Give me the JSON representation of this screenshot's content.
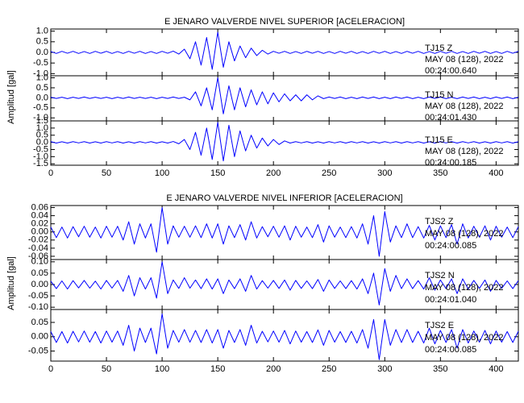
{
  "chart_data": [
    {
      "type": "line",
      "title": "E JENARO VALVERDE NIVEL SUPERIOR [ACELERACION]",
      "y_label": "Amplitud [gal]",
      "color": "#0000ff",
      "x": [
        0,
        5,
        10,
        15,
        20,
        25,
        30,
        35,
        40,
        45,
        50,
        55,
        60,
        65,
        70,
        75,
        80,
        85,
        90,
        95,
        100,
        105,
        110,
        115,
        120,
        125,
        130,
        135,
        140,
        145,
        150,
        155,
        160,
        165,
        170,
        175,
        180,
        185,
        190,
        195,
        200,
        205,
        210,
        215,
        220,
        225,
        230,
        235,
        240,
        245,
        250,
        255,
        260,
        265,
        270,
        275,
        280,
        285,
        290,
        295,
        300,
        305,
        310,
        315,
        320,
        325,
        330,
        335,
        340,
        345,
        350,
        355,
        360,
        365,
        370,
        375,
        380,
        385,
        390,
        395,
        400,
        405,
        410,
        415,
        420
      ],
      "xlim": [
        0,
        420
      ],
      "xticks": [
        0,
        50,
        100,
        150,
        200,
        250,
        300,
        350,
        400
      ],
      "panels": [
        {
          "annotation": [
            "TJ15   Z",
            "MAY 08 (128), 2022",
            "00:24:00.640"
          ],
          "ylim": [
            -1.1,
            1.1
          ],
          "yticks": [
            {
              "value": -1,
              "label": "-1.0"
            },
            -0.5,
            {
              "value": 0,
              "label": "0.0"
            },
            0.5,
            {
              "value": 1,
              "label": "1.0"
            }
          ],
          "values": [
            0.04,
            -0.05,
            0.05,
            -0.04,
            0.05,
            -0.05,
            0.04,
            -0.05,
            0.05,
            -0.04,
            0.05,
            -0.05,
            0.04,
            -0.05,
            0.05,
            -0.04,
            0.05,
            -0.05,
            0.04,
            -0.05,
            0.05,
            -0.04,
            0.06,
            -0.08,
            0.15,
            -0.3,
            0.5,
            -0.6,
            0.7,
            -0.8,
            0.95,
            -0.7,
            0.5,
            -0.4,
            0.3,
            -0.25,
            0.2,
            -0.15,
            0.1,
            -0.08,
            0.05,
            -0.04,
            0.05,
            -0.05,
            0.04,
            -0.05,
            0.05,
            -0.04,
            0.05,
            -0.05,
            0.04,
            -0.05,
            0.05,
            -0.04,
            0.05,
            -0.05,
            0.04,
            -0.05,
            0.05,
            -0.04,
            0.05,
            -0.05,
            0.04,
            -0.05,
            0.05,
            -0.04,
            0.05,
            -0.05,
            0.04,
            -0.05,
            0.05,
            -0.04,
            0.05,
            -0.05,
            0.04,
            -0.05,
            0.05,
            -0.04,
            0.05,
            -0.05,
            0.04,
            -0.05,
            0.05,
            -0.04,
            0.05
          ]
        },
        {
          "annotation": [
            "TJ15   N",
            "MAY 08 (128), 2022",
            "00:24:01.430"
          ],
          "ylim": [
            -1.15,
            1.1
          ],
          "yticks": [
            {
              "value": -1,
              "label": "-1.0"
            },
            -0.5,
            {
              "value": 0,
              "label": "0.0"
            },
            0.5,
            {
              "value": 1,
              "label": "1.0"
            }
          ],
          "values": [
            0.03,
            -0.03,
            0.03,
            -0.04,
            0.03,
            -0.03,
            0.04,
            -0.03,
            0.03,
            -0.03,
            0.03,
            -0.04,
            0.03,
            -0.03,
            0.04,
            -0.03,
            0.03,
            -0.03,
            0.03,
            -0.04,
            0.03,
            -0.03,
            0.04,
            -0.03,
            0.03,
            -0.1,
            0.3,
            -0.4,
            0.5,
            -0.6,
            1.0,
            -0.8,
            0.6,
            -0.6,
            0.5,
            -0.45,
            0.4,
            -0.35,
            0.3,
            -0.3,
            0.25,
            -0.2,
            0.2,
            -0.15,
            0.15,
            -0.15,
            0.15,
            -0.1,
            0.1,
            -0.04,
            0.04,
            -0.03,
            0.04,
            -0.04,
            0.03,
            -0.04,
            0.04,
            -0.03,
            0.04,
            -0.04,
            0.03,
            -0.04,
            0.04,
            -0.03,
            0.04,
            -0.04,
            0.03,
            -0.04,
            0.04,
            -0.03,
            0.04,
            -0.04,
            0.03,
            -0.04,
            0.04,
            -0.03,
            0.04,
            -0.04,
            0.03,
            -0.04,
            0.04,
            -0.03,
            0.04,
            -0.04,
            0.03
          ]
        },
        {
          "annotation": [
            "TJ15   E",
            "MAY 08 (128), 2022",
            "00:24:00.185"
          ],
          "ylim": [
            -1.6,
            1.5
          ],
          "yticks": [
            -1.5,
            {
              "value": -1,
              "label": "-1.0"
            },
            -0.5,
            {
              "value": 0,
              "label": "0.0"
            },
            0.5,
            {
              "value": 1,
              "label": "1.0"
            },
            1.5
          ],
          "values": [
            0.05,
            -0.05,
            0.04,
            -0.05,
            0.05,
            -0.04,
            0.05,
            -0.05,
            0.04,
            -0.05,
            0.05,
            -0.04,
            0.05,
            -0.05,
            0.04,
            -0.05,
            0.05,
            -0.04,
            0.05,
            -0.05,
            0.04,
            -0.05,
            0.06,
            -0.1,
            0.2,
            -0.5,
            0.7,
            -0.9,
            1.0,
            -1.2,
            1.4,
            -1.3,
            1.2,
            -1.0,
            0.8,
            -0.6,
            0.5,
            -0.4,
            0.3,
            -0.25,
            0.2,
            -0.15,
            0.1,
            -0.05,
            0.05,
            -0.04,
            0.05,
            -0.05,
            0.04,
            -0.05,
            0.05,
            -0.04,
            0.05,
            -0.05,
            0.05,
            -0.04,
            0.05,
            -0.05,
            0.04,
            -0.05,
            0.05,
            -0.04,
            0.05,
            -0.05,
            0.05,
            -0.04,
            0.05,
            -0.05,
            0.04,
            -0.05,
            0.05,
            -0.04,
            0.05,
            -0.05,
            0.05,
            -0.04,
            0.05,
            -0.05,
            0.04,
            -0.05,
            0.05,
            -0.04,
            0.05,
            -0.05,
            0.04
          ]
        }
      ]
    },
    {
      "type": "line",
      "title": "E JENARO VALVERDE NIVEL INFERIOR [ACELERACION]",
      "y_label": "Amplitud [gal]",
      "color": "#0000ff",
      "x": [
        0,
        5,
        10,
        15,
        20,
        25,
        30,
        35,
        40,
        45,
        50,
        55,
        60,
        65,
        70,
        75,
        80,
        85,
        90,
        95,
        100,
        105,
        110,
        115,
        120,
        125,
        130,
        135,
        140,
        145,
        150,
        155,
        160,
        165,
        170,
        175,
        180,
        185,
        190,
        195,
        200,
        205,
        210,
        215,
        220,
        225,
        230,
        235,
        240,
        245,
        250,
        255,
        260,
        265,
        270,
        275,
        280,
        285,
        290,
        295,
        300,
        305,
        310,
        315,
        320,
        325,
        330,
        335,
        340,
        345,
        350,
        355,
        360,
        365,
        370,
        375,
        380,
        385,
        390,
        395,
        400,
        405,
        410,
        415,
        420
      ],
      "xlim": [
        0,
        420
      ],
      "xticks": [
        0,
        50,
        100,
        150,
        200,
        250,
        300,
        350,
        400
      ],
      "panels": [
        {
          "annotation": [
            "TJS2   Z",
            "MAY 08 (128), 2022",
            "00:24:00.085"
          ],
          "ylim": [
            -0.068,
            0.065
          ],
          "yticks": [
            -0.06,
            -0.04,
            -0.02,
            {
              "value": 0,
              "label": "0.00"
            },
            0.02,
            0.04,
            0.06
          ],
          "values": [
            0.012,
            -0.014,
            0.012,
            -0.015,
            0.013,
            -0.012,
            0.014,
            -0.013,
            0.012,
            -0.015,
            0.014,
            -0.013,
            0.014,
            -0.02,
            0.025,
            -0.03,
            0.02,
            -0.015,
            0.02,
            -0.05,
            0.06,
            -0.03,
            0.015,
            -0.013,
            0.014,
            -0.013,
            0.015,
            -0.014,
            0.02,
            -0.015,
            0.02,
            -0.03,
            0.015,
            -0.014,
            0.018,
            -0.02,
            0.025,
            -0.015,
            0.013,
            -0.012,
            0.014,
            -0.013,
            0.015,
            -0.02,
            0.014,
            -0.013,
            0.012,
            -0.014,
            0.018,
            -0.025,
            0.015,
            -0.013,
            0.012,
            -0.014,
            0.013,
            -0.015,
            0.02,
            -0.03,
            0.04,
            -0.06,
            0.05,
            -0.025,
            0.015,
            -0.014,
            0.02,
            -0.014,
            0.013,
            -0.015,
            0.016,
            -0.02,
            0.015,
            -0.014,
            0.018,
            -0.03,
            0.02,
            -0.015,
            0.014,
            -0.013,
            0.015,
            -0.02,
            0.014,
            -0.013,
            0.012,
            -0.014,
            0.013
          ]
        },
        {
          "annotation": [
            "TJS2   N",
            "MAY 08 (128), 2022",
            "00:24:01.040"
          ],
          "ylim": [
            -0.11,
            0.11
          ],
          "yticks": [
            {
              "value": -0.1,
              "label": "-0.10"
            },
            -0.05,
            {
              "value": 0,
              "label": "0.00"
            },
            0.05,
            {
              "value": 0.1,
              "label": "0.10"
            }
          ],
          "values": [
            0.015,
            -0.018,
            0.016,
            -0.02,
            0.017,
            -0.015,
            0.018,
            -0.016,
            0.015,
            -0.02,
            0.018,
            -0.016,
            0.018,
            -0.03,
            0.04,
            -0.05,
            0.03,
            -0.02,
            0.03,
            -0.06,
            0.1,
            -0.04,
            0.02,
            -0.017,
            0.03,
            -0.016,
            0.02,
            -0.018,
            0.025,
            -0.02,
            0.025,
            -0.04,
            0.02,
            -0.018,
            0.025,
            -0.03,
            0.04,
            -0.02,
            0.017,
            -0.016,
            0.018,
            -0.017,
            0.02,
            -0.025,
            0.018,
            -0.017,
            0.016,
            -0.018,
            0.022,
            -0.03,
            0.02,
            -0.017,
            0.016,
            -0.018,
            0.017,
            -0.02,
            0.025,
            -0.04,
            0.05,
            -0.09,
            0.07,
            -0.03,
            0.04,
            -0.018,
            0.025,
            -0.018,
            0.017,
            -0.02,
            0.03,
            -0.025,
            0.02,
            -0.018,
            0.025,
            -0.04,
            0.025,
            -0.02,
            0.018,
            -0.017,
            0.02,
            -0.03,
            0.018,
            -0.017,
            0.016,
            -0.018,
            0.017
          ]
        },
        {
          "annotation": [
            "TJS2   E",
            "MAY 08 (128), 2022",
            "00:24:00.085"
          ],
          "ylim": [
            -0.085,
            0.095
          ],
          "yticks": [
            -0.05,
            {
              "value": 0,
              "label": "0.00"
            },
            0.05
          ],
          "values": [
            0.018,
            -0.02,
            0.018,
            -0.022,
            0.019,
            -0.018,
            0.02,
            -0.019,
            0.018,
            -0.022,
            0.02,
            -0.019,
            0.02,
            -0.03,
            0.04,
            -0.05,
            0.03,
            -0.02,
            0.03,
            -0.06,
            0.08,
            -0.04,
            0.022,
            -0.019,
            0.025,
            -0.019,
            0.022,
            -0.02,
            0.025,
            -0.022,
            0.025,
            -0.04,
            0.022,
            -0.02,
            0.025,
            -0.03,
            0.04,
            -0.022,
            0.019,
            -0.018,
            0.02,
            -0.019,
            0.022,
            -0.025,
            0.02,
            -0.019,
            0.018,
            -0.02,
            0.024,
            -0.03,
            0.022,
            -0.019,
            0.018,
            -0.02,
            0.019,
            -0.022,
            0.025,
            -0.04,
            0.06,
            -0.08,
            0.06,
            -0.03,
            0.025,
            -0.02,
            0.025,
            -0.02,
            0.019,
            -0.022,
            0.03,
            -0.025,
            0.022,
            -0.02,
            0.025,
            -0.04,
            0.025,
            -0.022,
            0.02,
            -0.019,
            0.022,
            -0.025,
            0.02,
            -0.019,
            0.018,
            -0.02,
            0.019
          ]
        }
      ]
    }
  ]
}
